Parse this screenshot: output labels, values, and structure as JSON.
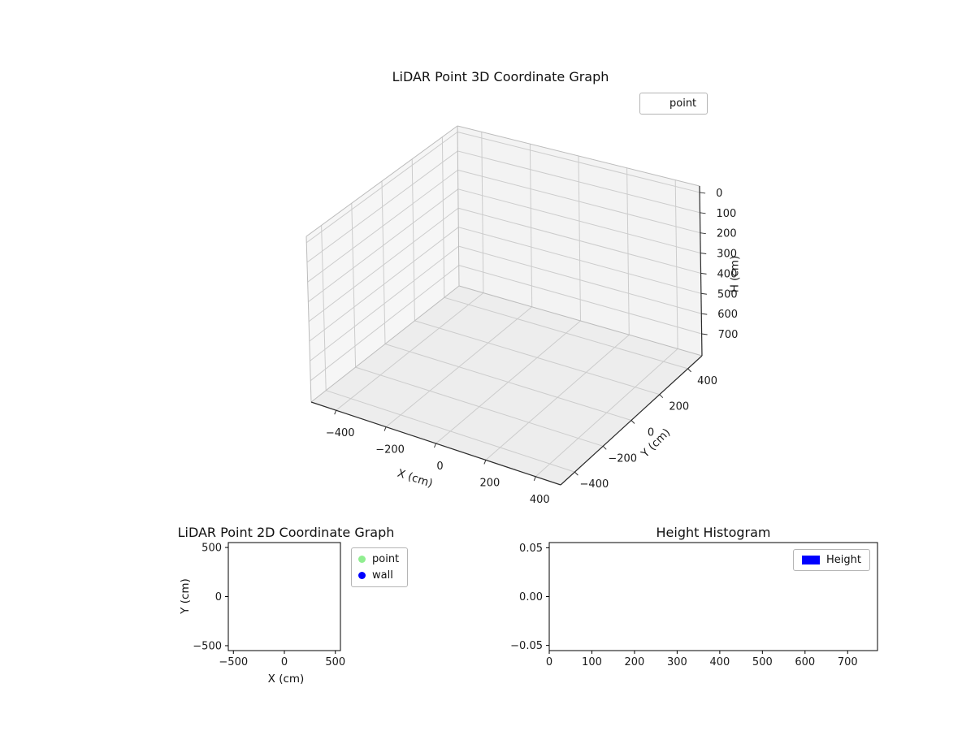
{
  "figure": {
    "background": "#ffffff"
  },
  "chart_data": [
    {
      "id": "plot3d",
      "type": "scatter3d",
      "title": "LiDAR Point 3D Coordinate Graph",
      "xlabel": "X (cm)",
      "ylabel": "Y (cm)",
      "zlabel": "H (cm)",
      "xlim": [
        -500,
        500
      ],
      "ylim": [
        -500,
        500
      ],
      "zticks_range": [
        0,
        700
      ],
      "zaxis_inverted": true,
      "xticks": [
        -400,
        -200,
        0,
        200,
        400
      ],
      "xtick_labels": [
        "−400",
        "−200",
        "0",
        "200",
        "400"
      ],
      "yticks": [
        -400,
        -200,
        0,
        200,
        400
      ],
      "ytick_labels": [
        "−400",
        "−200",
        "0",
        "200",
        "400"
      ],
      "zticks": [
        0,
        100,
        200,
        300,
        400,
        500,
        600,
        700
      ],
      "ztick_labels": [
        "0",
        "100",
        "200",
        "300",
        "400",
        "500",
        "600",
        "700"
      ],
      "grid": true,
      "legend": {
        "position": "upper-right-outside",
        "entries": [
          {
            "label": "point",
            "marker": "none"
          }
        ]
      },
      "series": [
        {
          "name": "point",
          "points": []
        }
      ]
    },
    {
      "id": "plot2d",
      "type": "scatter",
      "title": "LiDAR Point 2D Coordinate Graph",
      "xlabel": "X (cm)",
      "ylabel": "Y (cm)",
      "xlim": [
        -550,
        550
      ],
      "ylim": [
        -550,
        550
      ],
      "xticks": [
        -500,
        0,
        500
      ],
      "xtick_labels": [
        "−500",
        "0",
        "500"
      ],
      "yticks": [
        500,
        0,
        -500
      ],
      "ytick_labels": [
        "500",
        "0",
        "−500"
      ],
      "grid": false,
      "legend": {
        "position": "outside-right-top",
        "entries": [
          {
            "label": "point",
            "color": "#90ee90",
            "marker": "circle"
          },
          {
            "label": "wall",
            "color": "#0000ff",
            "marker": "circle"
          }
        ]
      },
      "series": [
        {
          "name": "point",
          "color": "#90ee90",
          "points": []
        },
        {
          "name": "wall",
          "color": "#0000ff",
          "points": []
        }
      ]
    },
    {
      "id": "hist",
      "type": "histogram",
      "title": "Height Histogram",
      "xlabel": "",
      "ylabel": "",
      "xlim": [
        0,
        770
      ],
      "ylim": [
        -0.0553,
        0.0553
      ],
      "xticks": [
        0,
        100,
        200,
        300,
        400,
        500,
        600,
        700
      ],
      "xtick_labels": [
        "0",
        "100",
        "200",
        "300",
        "400",
        "500",
        "600",
        "700"
      ],
      "yticks": [
        0.05,
        0,
        -0.05
      ],
      "ytick_labels": [
        "0.05",
        "0.00",
        "−0.05"
      ],
      "grid": false,
      "legend": {
        "position": "upper-right-inside",
        "entries": [
          {
            "label": "Height",
            "color": "#0000ff",
            "marker": "rect"
          }
        ]
      },
      "series": [
        {
          "name": "Height",
          "color": "#0000ff",
          "values": []
        }
      ]
    }
  ],
  "colors": {
    "point_2d": "#90ee90",
    "wall_2d": "#0000ff",
    "height_hist": "#0000ff"
  }
}
